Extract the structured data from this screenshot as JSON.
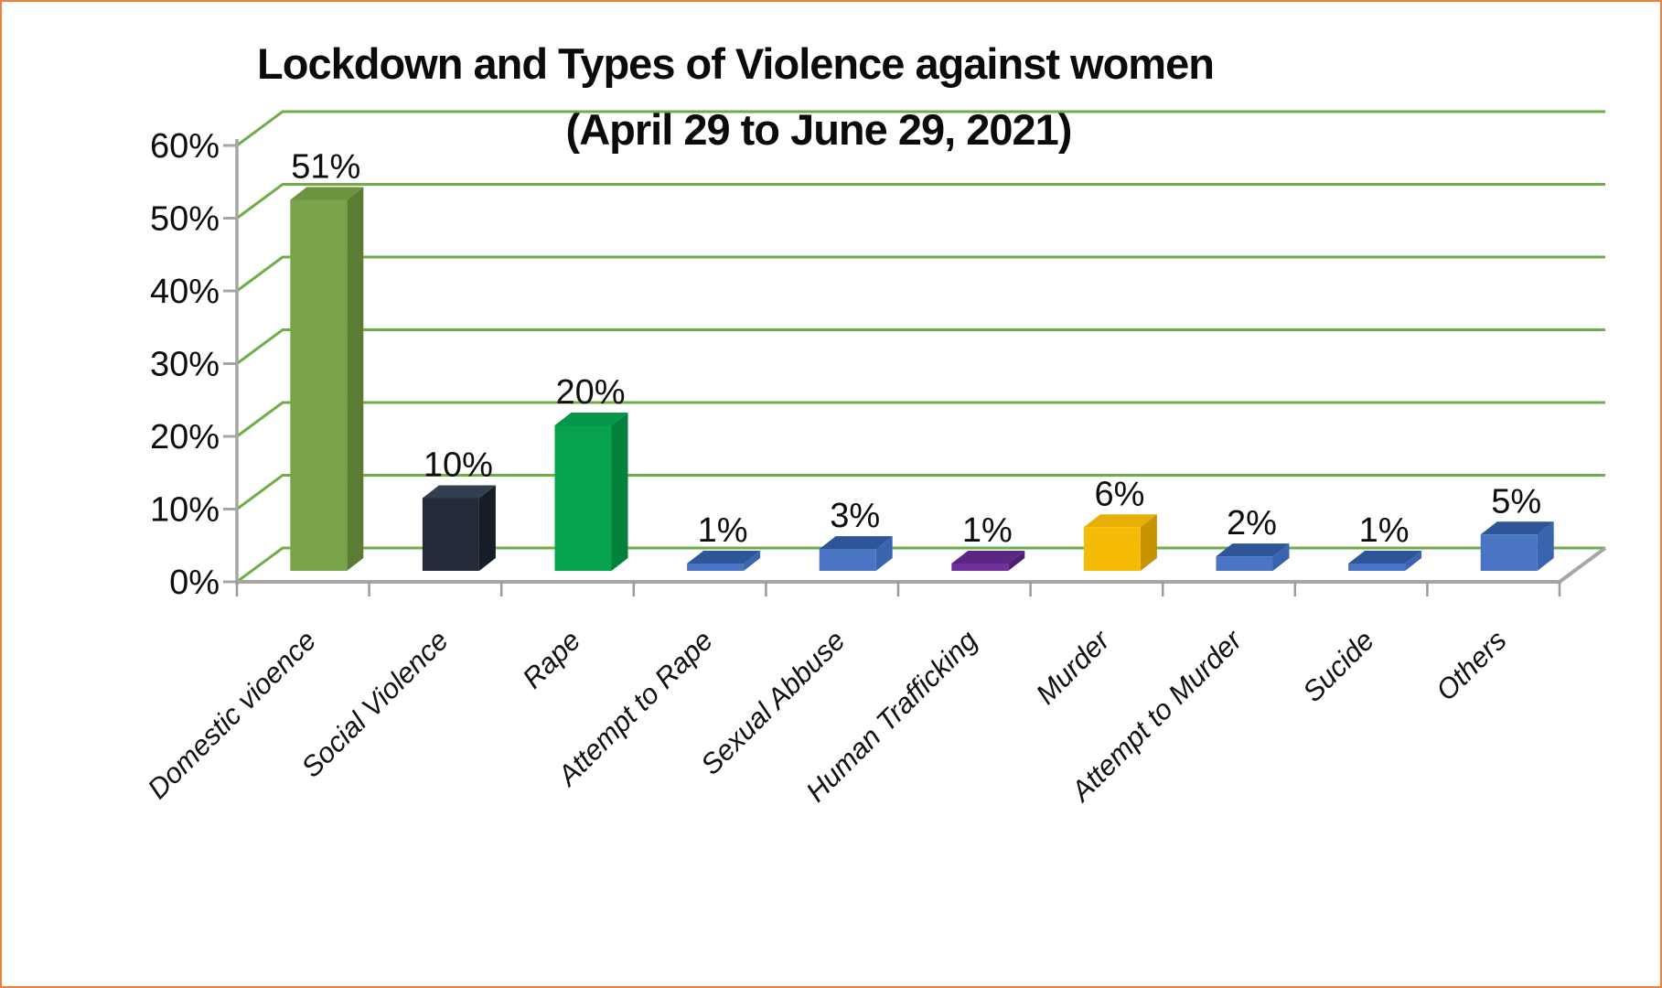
{
  "page": {
    "background": "#ffffff",
    "border_color": "#E8823C"
  },
  "chart_data": {
    "type": "bar",
    "effect": "3d",
    "title_line1": "Lockdown and Types of Violence against women",
    "title_line2": "(April 29 to June 29, 2021)",
    "xlabel": "",
    "ylabel": "",
    "ylim": [
      0,
      60
    ],
    "y_step": 10,
    "grid": "on",
    "legend_position": "none",
    "y_tick_labels": [
      "0%",
      "10%",
      "20%",
      "30%",
      "40%",
      "50%",
      "60%"
    ],
    "categories": [
      "Domestic vioence",
      "Social Violence",
      "Rape",
      "Attempt to Rape",
      "Sexual Abbuse",
      "Human Trafficking",
      "Murder",
      "Attempt to Murder",
      "Sucide",
      "Others"
    ],
    "values": [
      51,
      10,
      20,
      1,
      3,
      1,
      6,
      2,
      1,
      5
    ],
    "value_labels": [
      "51%",
      "10%",
      "20%",
      "1%",
      "3%",
      "1%",
      "6%",
      "2%",
      "1%",
      "5%"
    ],
    "colors": {
      "gridline_green": "#6FAD47",
      "axis_gray": "#A6A6A6",
      "tick_gray": "#9B9B9B",
      "text_black": "#0d0d0d"
    },
    "bar_colors": [
      {
        "name": "olive-green",
        "front": "#79A44A",
        "side": "#5A7C33",
        "top": "#6B9440"
      },
      {
        "name": "dark-navy",
        "front": "#222B37",
        "side": "#161D26",
        "top": "#333F4E"
      },
      {
        "name": "bright-green",
        "front": "#07A24E",
        "side": "#02813D",
        "top": "#079549"
      },
      {
        "name": "blue",
        "front": "#4A74C5",
        "side": "#3A63B0",
        "top": "#2E5597"
      },
      {
        "name": "blue",
        "front": "#4A74C5",
        "side": "#3A63B0",
        "top": "#2E5597"
      },
      {
        "name": "purple",
        "front": "#71309E",
        "side": "#4E2071",
        "top": "#5C2683"
      },
      {
        "name": "gold",
        "front": "#F6BB06",
        "side": "#C79300",
        "top": "#E9AD07"
      },
      {
        "name": "blue",
        "front": "#4A74C5",
        "side": "#3A63B0",
        "top": "#2E5597"
      },
      {
        "name": "blue",
        "front": "#4A74C5",
        "side": "#3A63B0",
        "top": "#2E5597"
      },
      {
        "name": "blue",
        "front": "#4A74C5",
        "side": "#3A63B0",
        "top": "#2E5597"
      }
    ]
  }
}
